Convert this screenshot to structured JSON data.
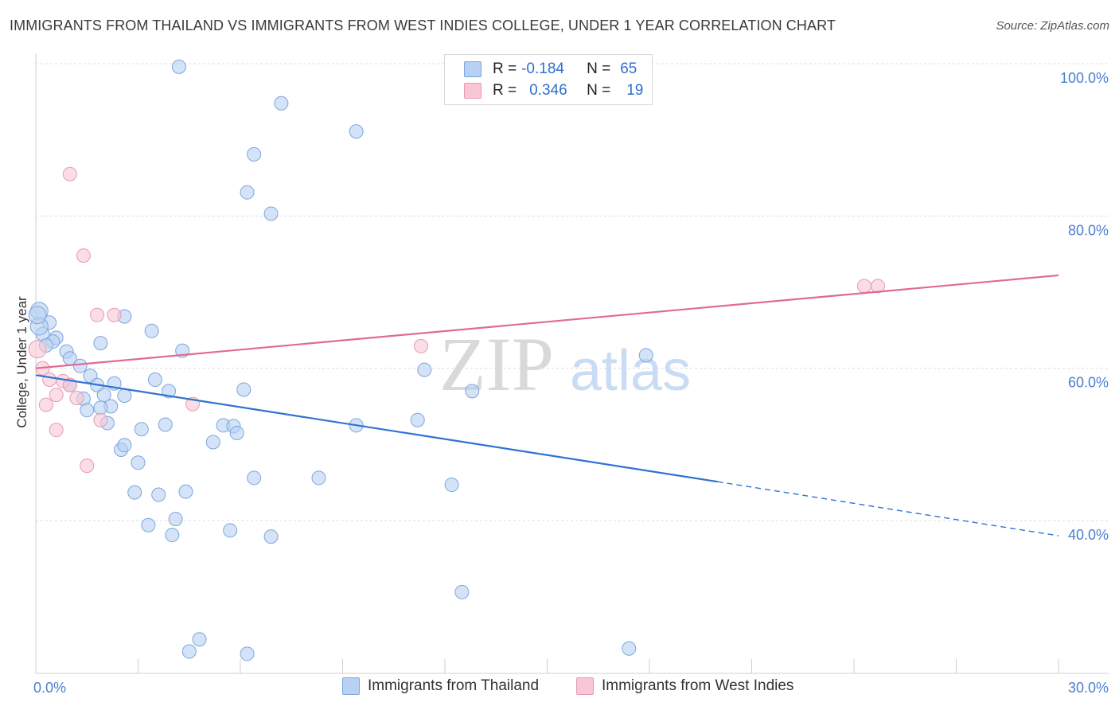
{
  "title": "IMMIGRANTS FROM THAILAND VS IMMIGRANTS FROM WEST INDIES COLLEGE, UNDER 1 YEAR CORRELATION CHART",
  "source": "Source: ZipAtlas.com",
  "watermark": {
    "zip": "ZIP",
    "atlas": "atlas"
  },
  "legend_box": [
    {
      "r_label": "R =",
      "r_value": "-0.184",
      "n_label": "N =",
      "n_value": "65"
    },
    {
      "r_label": "R =",
      "r_value": "0.346",
      "n_label": "N =",
      "n_value": "19"
    }
  ],
  "colors": {
    "blue_fill": "#b8d0f2",
    "blue_stroke": "#7ea6dd",
    "blue_line": "#2f72d4",
    "pink_fill": "#f8c6d5",
    "pink_stroke": "#e89ab2",
    "pink_line": "#e06b92",
    "axis_text": "#4a7fd1"
  },
  "chart_data": {
    "type": "scatter",
    "title": "IMMIGRANTS FROM THAILAND VS IMMIGRANTS FROM WEST INDIES COLLEGE, UNDER 1 YEAR CORRELATION CHART",
    "xlabel": "",
    "ylabel": "College, Under 1 year",
    "xlim": [
      0,
      30
    ],
    "ylim": [
      22,
      102
    ],
    "x_tick_labels": [
      {
        "value": 0,
        "label": "0.0%"
      },
      {
        "value": 30,
        "label": "30.0%"
      }
    ],
    "y_tick_labels": [
      {
        "value": 100,
        "label": "100.0%"
      },
      {
        "value": 80,
        "label": "80.0%"
      },
      {
        "value": 60,
        "label": "60.0%"
      },
      {
        "value": 40,
        "label": "40.0%"
      }
    ],
    "series": [
      {
        "name": "Immigrants from Thailand",
        "color": "#b8d0f2",
        "r": -0.184,
        "n": 65,
        "trend": {
          "x0": 0,
          "y0": 59.1,
          "x1": 20.0,
          "y1": 45.1,
          "dash_to_x": 30.0,
          "dash_to_y": 38.0
        },
        "points": [
          [
            0.1,
            67.5
          ],
          [
            0.4,
            66.0
          ],
          [
            0.2,
            64.5
          ],
          [
            0.6,
            64.0
          ],
          [
            0.9,
            62.2
          ],
          [
            1.0,
            61.3
          ],
          [
            0.5,
            63.5
          ],
          [
            1.3,
            60.3
          ],
          [
            1.0,
            57.8
          ],
          [
            1.6,
            59.0
          ],
          [
            1.8,
            57.8
          ],
          [
            1.4,
            56.0
          ],
          [
            1.5,
            54.5
          ],
          [
            2.0,
            56.5
          ],
          [
            2.2,
            55.0
          ],
          [
            2.3,
            58.0
          ],
          [
            2.6,
            56.4
          ],
          [
            1.9,
            54.8
          ],
          [
            2.1,
            52.8
          ],
          [
            2.5,
            49.3
          ],
          [
            2.6,
            49.9
          ],
          [
            3.1,
            52.0
          ],
          [
            3.0,
            47.6
          ],
          [
            2.9,
            43.7
          ],
          [
            3.3,
            39.4
          ],
          [
            3.6,
            43.4
          ],
          [
            3.5,
            58.5
          ],
          [
            3.8,
            52.6
          ],
          [
            3.9,
            57.0
          ],
          [
            4.0,
            38.1
          ],
          [
            4.1,
            40.2
          ],
          [
            4.4,
            43.8
          ],
          [
            5.2,
            50.3
          ],
          [
            5.5,
            52.5
          ],
          [
            5.7,
            38.7
          ],
          [
            5.8,
            52.4
          ],
          [
            5.9,
            51.5
          ],
          [
            6.1,
            57.2
          ],
          [
            6.4,
            45.6
          ],
          [
            6.9,
            37.9
          ],
          [
            4.2,
            99.6
          ],
          [
            7.2,
            94.8
          ],
          [
            6.4,
            88.1
          ],
          [
            6.2,
            83.1
          ],
          [
            6.9,
            80.3
          ],
          [
            9.4,
            91.1
          ],
          [
            3.4,
            64.9
          ],
          [
            2.6,
            66.8
          ],
          [
            4.3,
            62.3
          ],
          [
            1.9,
            63.3
          ],
          [
            8.3,
            45.6
          ],
          [
            9.4,
            52.5
          ],
          [
            11.2,
            53.2
          ],
          [
            11.4,
            59.8
          ],
          [
            12.2,
            44.7
          ],
          [
            12.8,
            57.0
          ],
          [
            12.5,
            30.6
          ],
          [
            4.8,
            24.4
          ],
          [
            4.5,
            22.8
          ],
          [
            6.2,
            22.5
          ],
          [
            17.9,
            61.7
          ],
          [
            17.4,
            23.2
          ],
          [
            0.1,
            65.5
          ],
          [
            0.3,
            63.0
          ],
          [
            0.05,
            67.0
          ]
        ]
      },
      {
        "name": "Immigrants from West Indies",
        "color": "#f8c6d5",
        "r": 0.346,
        "n": 19,
        "trend": {
          "x0": 0,
          "y0": 60.0,
          "x1": 30.0,
          "y1": 72.2
        },
        "points": [
          [
            0.05,
            62.5
          ],
          [
            0.2,
            60.0
          ],
          [
            0.4,
            58.5
          ],
          [
            0.6,
            56.5
          ],
          [
            0.8,
            58.3
          ],
          [
            1.0,
            57.8
          ],
          [
            0.3,
            55.2
          ],
          [
            0.6,
            51.9
          ],
          [
            1.2,
            56.1
          ],
          [
            1.5,
            47.2
          ],
          [
            1.9,
            53.2
          ],
          [
            1.8,
            67.0
          ],
          [
            2.3,
            67.0
          ],
          [
            4.6,
            55.3
          ],
          [
            1.0,
            85.5
          ],
          [
            1.4,
            74.8
          ],
          [
            11.3,
            62.9
          ],
          [
            24.3,
            70.8
          ],
          [
            24.7,
            70.8
          ]
        ]
      }
    ]
  },
  "bottom_legend": [
    {
      "label": "Immigrants from Thailand"
    },
    {
      "label": "Immigrants from West Indies"
    }
  ]
}
